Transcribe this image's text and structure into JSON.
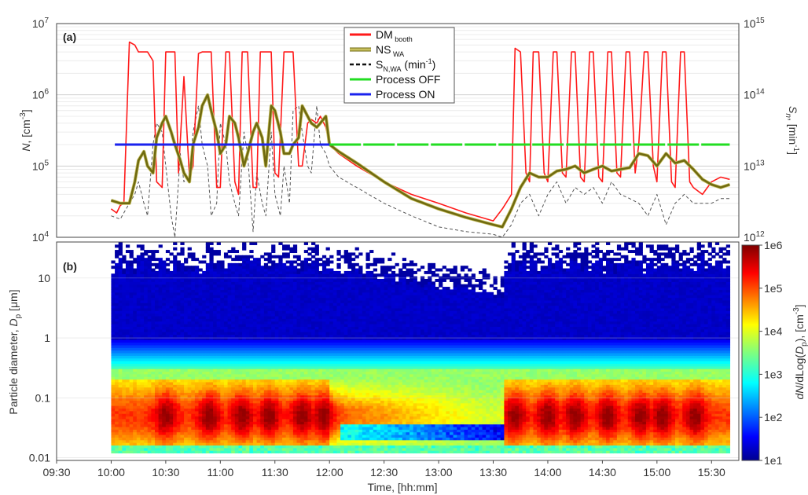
{
  "chart_data": [
    {
      "type": "line",
      "panel_label": "(a)",
      "ylabel_left_main": "N",
      "ylabel_left_rest": ", [cm",
      "ylabel_left_sup": "-3",
      "ylabel_left_close": "]",
      "ylabel_right_main": "S",
      "ylabel_right_sub": "n",
      "ylabel_right_rest": ", [min",
      "ylabel_right_sup": "-1",
      "ylabel_right_close": "]",
      "y_scale": "log",
      "ylim": [
        10000,
        10000000
      ],
      "y2lim": [
        1000000000000,
        1000000000000000
      ],
      "y_ticks": [
        {
          "base": "10",
          "exp": "4",
          "value": 10000
        },
        {
          "base": "10",
          "exp": "5",
          "value": 100000
        },
        {
          "base": "10",
          "exp": "6",
          "value": 1000000
        },
        {
          "base": "10",
          "exp": "7",
          "value": 10000000
        }
      ],
      "y2_ticks": [
        {
          "base": "10",
          "exp": "12",
          "value": 1000000000000
        },
        {
          "base": "10",
          "exp": "13",
          "value": 10000000000000
        },
        {
          "base": "10",
          "exp": "14",
          "value": 100000000000000
        },
        {
          "base": "10",
          "exp": "15",
          "value": 1000000000000000
        }
      ],
      "grid": true,
      "legend": {
        "placement": "top-center",
        "entries": [
          {
            "main": "DM",
            "sub": "booth",
            "sup": "",
            "tail": "",
            "color": "#ff1a1a",
            "style": "solid"
          },
          {
            "main": "NS",
            "sub": "WA",
            "sup": "",
            "tail": "",
            "color": "#c8c060",
            "style": "solid-outline"
          },
          {
            "main": "S",
            "sub": "N,WA",
            "sup": "-1",
            "tail": " (min",
            "close": ")",
            "color": "#111111",
            "style": "dashed"
          },
          {
            "main": "Process OFF",
            "sub": "",
            "sup": "",
            "tail": "",
            "color": "#22dd22",
            "style": "solid"
          },
          {
            "main": "Process ON",
            "sub": "",
            "sup": "",
            "tail": "",
            "color": "#1a22ee",
            "style": "solid"
          }
        ]
      },
      "series": [
        {
          "name": "DM booth",
          "color": "#ff1a1a",
          "x": [
            "10:00",
            "10:03",
            "10:05",
            "10:07",
            "10:10",
            "10:13",
            "10:15",
            "10:17",
            "10:20",
            "10:23",
            "10:25",
            "10:28",
            "10:30",
            "10:33",
            "10:35",
            "10:37",
            "10:40",
            "10:43",
            "10:45",
            "10:48",
            "10:50",
            "10:52",
            "10:55",
            "10:58",
            "11:00",
            "11:03",
            "11:05",
            "11:08",
            "11:10",
            "11:12",
            "11:15",
            "11:18",
            "11:20",
            "11:22",
            "11:25",
            "11:28",
            "11:30",
            "11:32",
            "11:35",
            "11:38",
            "11:40",
            "11:43",
            "11:45",
            "11:48",
            "11:50",
            "11:53",
            "11:55",
            "11:58",
            "12:00",
            "12:05",
            "12:15",
            "12:30",
            "12:45",
            "13:00",
            "13:15",
            "13:30",
            "13:35",
            "13:37",
            "13:40",
            "13:42",
            "13:45",
            "13:48",
            "13:50",
            "13:52",
            "13:55",
            "13:58",
            "14:00",
            "14:03",
            "14:05",
            "14:08",
            "14:10",
            "14:13",
            "14:15",
            "14:18",
            "14:20",
            "14:23",
            "14:25",
            "14:28",
            "14:30",
            "14:33",
            "14:35",
            "14:38",
            "14:40",
            "14:43",
            "14:45",
            "14:48",
            "14:50",
            "14:53",
            "14:55",
            "14:58",
            "15:00",
            "15:03",
            "15:05",
            "15:08",
            "15:10",
            "15:13",
            "15:15",
            "15:18",
            "15:20",
            "15:25",
            "15:30",
            "15:35",
            "15:40"
          ],
          "y": [
            25000,
            22000,
            28000,
            30000,
            5500000,
            5000000,
            4000000,
            4000000,
            4000000,
            3000000,
            60000,
            50000,
            4000000,
            4000000,
            4000000,
            80000,
            1800000,
            70000,
            100000,
            3800000,
            4000000,
            4000000,
            4000000,
            50000,
            50000,
            4000000,
            4000000,
            60000,
            40000,
            4000000,
            4000000,
            50000,
            50000,
            4000000,
            4000000,
            4000000,
            80000,
            70000,
            4000000,
            4000000,
            4000000,
            100000,
            100000,
            400000,
            450000,
            400000,
            500000,
            350000,
            200000,
            150000,
            100000,
            60000,
            40000,
            30000,
            22000,
            17000,
            25000,
            30000,
            40000,
            4500000,
            4000000,
            80000,
            60000,
            4000000,
            4000000,
            80000,
            60000,
            4000000,
            4000000,
            80000,
            70000,
            4000000,
            4000000,
            70000,
            60000,
            4000000,
            4000000,
            70000,
            60000,
            4000000,
            4000000,
            80000,
            70000,
            4000000,
            4000000,
            80000,
            200000,
            4000000,
            4000000,
            100000,
            60000,
            4000000,
            4000000,
            60000,
            50000,
            4000000,
            4000000,
            60000,
            50000,
            40000,
            60000,
            70000,
            65000
          ]
        },
        {
          "name": "NS WA",
          "color": "#8a7a20",
          "x": [
            "10:00",
            "10:05",
            "10:10",
            "10:13",
            "10:15",
            "10:18",
            "10:20",
            "10:23",
            "10:25",
            "10:28",
            "10:30",
            "10:33",
            "10:35",
            "10:38",
            "10:40",
            "10:43",
            "10:45",
            "10:48",
            "10:50",
            "10:53",
            "10:55",
            "10:58",
            "11:00",
            "11:03",
            "11:05",
            "11:08",
            "11:10",
            "11:13",
            "11:15",
            "11:18",
            "11:20",
            "11:23",
            "11:25",
            "11:28",
            "11:30",
            "11:33",
            "11:35",
            "11:38",
            "11:40",
            "11:43",
            "11:45",
            "11:48",
            "11:50",
            "11:53",
            "11:55",
            "11:58",
            "12:00",
            "12:05",
            "12:15",
            "12:30",
            "12:45",
            "13:00",
            "13:15",
            "13:30",
            "13:35",
            "13:40",
            "13:45",
            "13:50",
            "13:55",
            "14:00",
            "14:05",
            "14:10",
            "14:15",
            "14:20",
            "14:25",
            "14:30",
            "14:35",
            "14:40",
            "14:45",
            "14:50",
            "14:55",
            "15:00",
            "15:05",
            "15:10",
            "15:15",
            "15:20",
            "15:25",
            "15:30",
            "15:35",
            "15:40"
          ],
          "y": [
            33000,
            30000,
            30000,
            60000,
            120000,
            160000,
            100000,
            80000,
            250000,
            400000,
            500000,
            300000,
            200000,
            120000,
            80000,
            60000,
            200000,
            350000,
            700000,
            1000000,
            600000,
            300000,
            150000,
            200000,
            500000,
            400000,
            250000,
            100000,
            150000,
            300000,
            400000,
            250000,
            100000,
            700000,
            600000,
            300000,
            150000,
            150000,
            200000,
            250000,
            700000,
            500000,
            400000,
            350000,
            400000,
            500000,
            200000,
            160000,
            110000,
            60000,
            35000,
            25000,
            19000,
            15000,
            14000,
            25000,
            50000,
            80000,
            70000,
            70000,
            85000,
            90000,
            100000,
            80000,
            90000,
            100000,
            85000,
            90000,
            95000,
            150000,
            140000,
            100000,
            150000,
            110000,
            120000,
            90000,
            65000,
            55000,
            50000,
            55000
          ]
        },
        {
          "name": "S N,WA (min-1)",
          "color": "#555555",
          "x": [
            "10:00",
            "10:05",
            "10:10",
            "10:13",
            "10:15",
            "10:18",
            "10:20",
            "10:23",
            "10:25",
            "10:28",
            "10:30",
            "10:33",
            "10:35",
            "10:38",
            "10:40",
            "10:43",
            "10:45",
            "10:48",
            "10:50",
            "10:53",
            "10:55",
            "10:58",
            "11:00",
            "11:03",
            "11:05",
            "11:08",
            "11:10",
            "11:13",
            "11:15",
            "11:18",
            "11:20",
            "11:23",
            "11:25",
            "11:28",
            "11:30",
            "11:33",
            "11:35",
            "11:38",
            "11:40",
            "11:43",
            "11:45",
            "11:48",
            "11:50",
            "11:53",
            "11:55",
            "11:58",
            "12:00",
            "12:05",
            "12:15",
            "12:30",
            "12:45",
            "13:00",
            "13:15",
            "13:30",
            "13:35",
            "13:40",
            "13:45",
            "13:50",
            "13:55",
            "14:00",
            "14:05",
            "14:10",
            "14:15",
            "14:20",
            "14:25",
            "14:30",
            "14:35",
            "14:40",
            "14:45",
            "14:50",
            "14:55",
            "15:00",
            "15:05",
            "15:10",
            "15:15",
            "15:20",
            "15:25",
            "15:30",
            "15:35",
            "15:40"
          ],
          "y": [
            20000,
            18000,
            30000,
            40000,
            60000,
            30000,
            20000,
            200000,
            400000,
            300000,
            100000,
            20000,
            10000,
            150000,
            60000,
            80000,
            300000,
            700000,
            200000,
            100000,
            20000,
            30000,
            400000,
            200000,
            60000,
            30000,
            20000,
            300000,
            150000,
            12000,
            80000,
            30000,
            20000,
            300000,
            40000,
            20000,
            100000,
            30000,
            600000,
            700000,
            300000,
            100000,
            80000,
            700000,
            200000,
            150000,
            100000,
            70000,
            50000,
            30000,
            20000,
            14000,
            12000,
            11000,
            10000,
            15000,
            30000,
            40000,
            20000,
            40000,
            60000,
            30000,
            50000,
            40000,
            50000,
            30000,
            60000,
            40000,
            35000,
            30000,
            20000,
            40000,
            15000,
            30000,
            40000,
            30000,
            30000,
            30000,
            35000,
            35000
          ]
        },
        {
          "name": "Process OFF",
          "color": "#22dd22",
          "x": [
            "12:00",
            "15:40"
          ],
          "y": [
            200000,
            200000
          ]
        },
        {
          "name": "Process ON",
          "color": "#1a22ee",
          "x": [
            "10:02",
            "12:00"
          ],
          "y": [
            200000,
            200000
          ]
        }
      ]
    },
    {
      "type": "heatmap",
      "panel_label": "(b)",
      "ylabel_main": "Particle diameter, ",
      "ylabel_var": "D",
      "ylabel_sub": "p",
      "ylabel_unit": " [μm]",
      "y_scale": "log",
      "ylim": [
        0.009,
        40
      ],
      "y_ticks": [
        {
          "label": "0.01",
          "value": 0.01
        },
        {
          "label": "0.1",
          "value": 0.1
        },
        {
          "label": "1",
          "value": 1
        },
        {
          "label": "10",
          "value": 10
        }
      ],
      "x_range": [
        "10:00",
        "15:40"
      ],
      "colorbar": {
        "label_main": "dN/dLog(",
        "label_var": "D",
        "label_sub": "p",
        "label_close": "), [cm",
        "label_sup": "-3",
        "label_end": "]",
        "scale": "log",
        "range": [
          10,
          1000000
        ],
        "ticks": [
          {
            "label": "1e1",
            "value": 10
          },
          {
            "label": "1e2",
            "value": 100
          },
          {
            "label": "1e3",
            "value": 1000
          },
          {
            "label": "1e4",
            "value": 10000
          },
          {
            "label": "1e5",
            "value": 100000
          },
          {
            "label": "1e6",
            "value": 1000000
          }
        ]
      }
    }
  ],
  "shared_x": {
    "xlabel": "Time, [hh:mm]",
    "xlim": [
      "09:30",
      "15:45"
    ],
    "ticks": [
      "09:30",
      "10:00",
      "10:30",
      "11:00",
      "11:30",
      "12:00",
      "12:30",
      "13:00",
      "13:30",
      "14:00",
      "14:30",
      "15:00",
      "15:30"
    ]
  }
}
